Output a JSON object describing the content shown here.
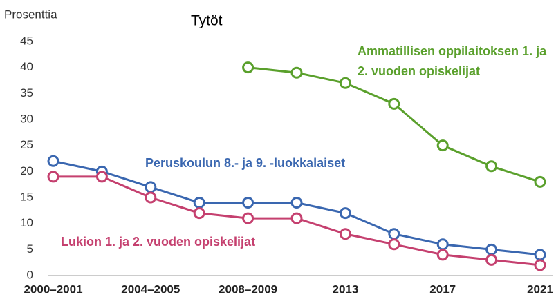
{
  "chart_data": {
    "type": "line",
    "title": "Tytöt",
    "y_label": "Prosenttia",
    "categories": [
      "2000–2001",
      null,
      "2004–2005",
      null,
      "2008–2009",
      null,
      "2013",
      null,
      "2017",
      null,
      "2021"
    ],
    "series": [
      {
        "name": "Peruskoulun 8.- ja 9. -luokkalaiset",
        "color": "#3a67b0",
        "values": [
          22,
          20,
          17,
          14,
          14,
          14,
          12,
          8,
          6,
          5,
          4
        ]
      },
      {
        "name": "Lukion 1. ja 2. vuoden opiskelijat",
        "color": "#c5406f",
        "values": [
          19,
          19,
          15,
          12,
          11,
          11,
          8,
          6,
          4,
          3,
          2
        ]
      },
      {
        "name": "Ammatillisen oppilaitoksen 1. ja 2. vuoden opiskelijat",
        "color": "#5aa02c",
        "values": [
          null,
          null,
          null,
          null,
          40,
          39,
          37,
          33,
          25,
          21,
          18
        ]
      }
    ],
    "ylim": [
      0,
      45
    ],
    "yticks": [
      0,
      5,
      10,
      15,
      20,
      25,
      30,
      35,
      40,
      45
    ],
    "grid": false
  }
}
